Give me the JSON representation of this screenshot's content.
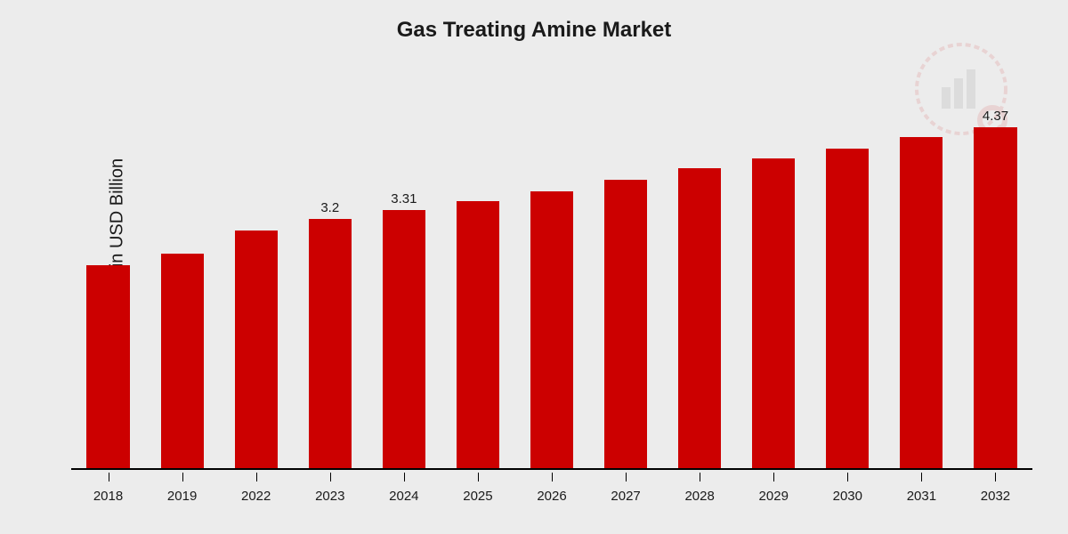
{
  "chart": {
    "type": "bar",
    "title": "Gas Treating Amine Market",
    "title_fontsize": 24,
    "ylabel": "Market Value in USD Billion",
    "ylabel_fontsize": 20,
    "xlabel_fontsize": 15,
    "background_color": "#ececec",
    "axis_color": "#000000",
    "text_color": "#1a1a1a",
    "bar_color": "#cc0000",
    "bar_width_relative": 0.58,
    "ylim": [
      0,
      5.0
    ],
    "categories": [
      "2018",
      "2019",
      "2022",
      "2023",
      "2024",
      "2025",
      "2026",
      "2027",
      "2028",
      "2029",
      "2030",
      "2031",
      "2032"
    ],
    "values": [
      2.6,
      2.75,
      3.05,
      3.2,
      3.31,
      3.42,
      3.55,
      3.7,
      3.85,
      3.97,
      4.1,
      4.25,
      4.37
    ],
    "value_labels": [
      "",
      "",
      "",
      "3.2",
      "3.31",
      "",
      "",
      "",
      "",
      "",
      "",
      "",
      "4.37"
    ]
  },
  "watermark": {
    "opacity": 0.1,
    "circle_color": "#cc0000",
    "bar_color": "#555555"
  }
}
